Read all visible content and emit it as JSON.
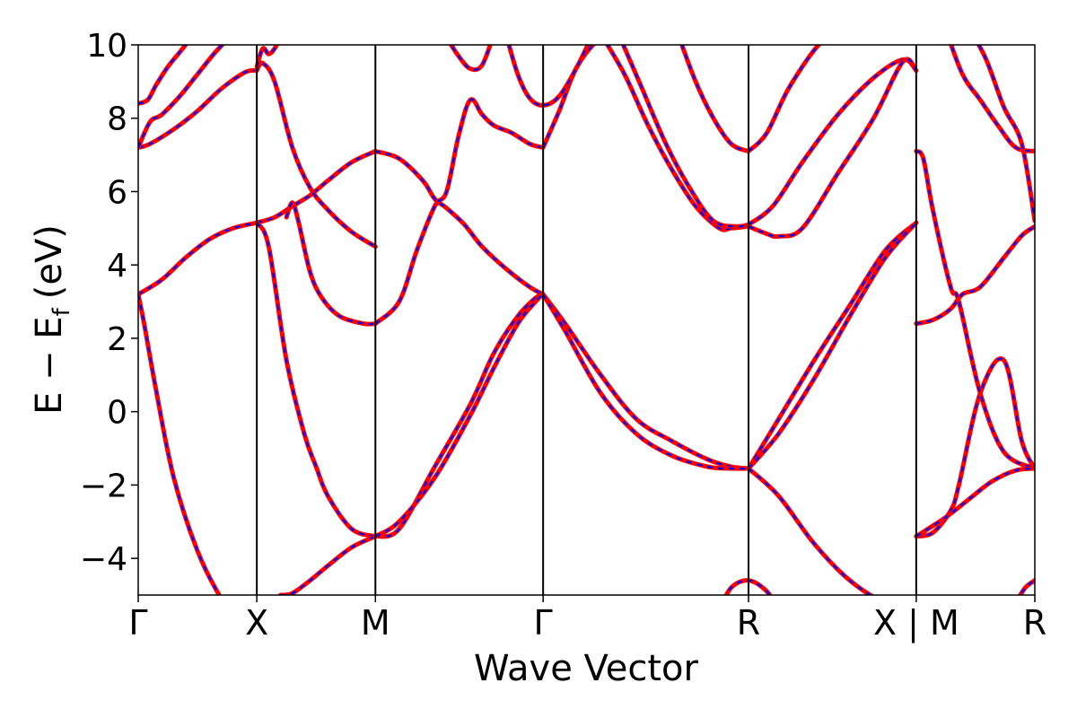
{
  "chart_data": {
    "type": "line",
    "title": "",
    "xlabel": "Wave Vector",
    "ylabel": "E − E",
    "ylabel_subscript": "f",
    "ylabel_unit": "(eV)",
    "ylim": [
      -5,
      10
    ],
    "yticks": [
      -4,
      -2,
      0,
      2,
      4,
      6,
      8,
      10
    ],
    "ytick_labels": [
      "−4",
      "−2",
      "0",
      "2",
      "4",
      "6",
      "8",
      "10"
    ],
    "kpath": [
      {
        "label": "Γ",
        "x": 0.0
      },
      {
        "label": "X",
        "x": 1.0
      },
      {
        "label": "M",
        "x": 2.0
      },
      {
        "label": "Γ",
        "x": 3.414
      },
      {
        "label": "R",
        "x": 5.146
      },
      {
        "label": "X | M",
        "x": 6.56
      },
      {
        "label": "R",
        "x": 7.56
      }
    ],
    "xlim": [
      0,
      7.56
    ],
    "grid": false,
    "colors": {
      "primary": "#ff0000",
      "dashed": "#0000ff",
      "vlines": "#000000"
    },
    "series": [
      {
        "segment": "Gamma-X",
        "x": [
          0,
          0.2,
          0.4,
          0.6,
          0.8,
          1.0
        ],
        "values": [
          3.2,
          3.6,
          4.2,
          4.7,
          5.0,
          5.15
        ]
      },
      {
        "segment": "Gamma-X",
        "x": [
          0,
          0.05,
          0.15,
          0.3,
          0.5,
          0.7,
          0.85,
          0.95
        ],
        "values": [
          3.2,
          2.4,
          0.6,
          -1.8,
          -3.8,
          -5.1,
          -5.8,
          -6.0
        ]
      },
      {
        "segment": "Gamma-X",
        "x": [
          0,
          0.1,
          0.3,
          0.5,
          0.7,
          0.9,
          1.0
        ],
        "values": [
          7.2,
          7.3,
          7.7,
          8.2,
          8.8,
          9.25,
          9.3
        ]
      },
      {
        "segment": "Gamma-X",
        "x": [
          0,
          0.1,
          0.2,
          0.35,
          0.5,
          0.65,
          0.8
        ],
        "values": [
          7.2,
          7.9,
          8.1,
          8.6,
          9.2,
          9.8,
          10.3
        ]
      },
      {
        "segment": "Gamma-X",
        "x": [
          0,
          0.08,
          0.15,
          0.25,
          0.35,
          0.45,
          0.55
        ],
        "values": [
          8.4,
          8.5,
          8.9,
          9.4,
          9.8,
          10.2,
          10.5
        ]
      },
      {
        "segment": "X-M",
        "x": [
          1.0,
          1.15,
          1.3,
          1.45,
          1.6,
          1.8,
          2.0
        ],
        "values": [
          5.15,
          5.3,
          5.6,
          5.9,
          6.3,
          6.8,
          7.1
        ]
      },
      {
        "segment": "X-M",
        "x": [
          1.0,
          1.05,
          1.15,
          1.3,
          1.45,
          1.6,
          1.8,
          2.0
        ],
        "values": [
          9.3,
          9.5,
          9.0,
          7.2,
          6.1,
          5.5,
          4.9,
          4.5
        ]
      },
      {
        "segment": "X-M",
        "x": [
          1.0,
          1.1,
          1.25,
          1.4,
          1.5,
          1.6,
          1.8,
          2.0
        ],
        "values": [
          5.15,
          4.5,
          1.4,
          -0.6,
          -1.5,
          -2.3,
          -3.2,
          -3.4
        ]
      },
      {
        "segment": "X-M",
        "x": [
          1.25,
          1.3,
          1.35,
          1.45,
          1.55,
          1.7,
          1.9,
          2.0
        ],
        "values": [
          5.3,
          5.7,
          5.2,
          3.8,
          3.1,
          2.6,
          2.4,
          2.4
        ]
      },
      {
        "segment": "X-M",
        "x": [
          1.2,
          1.3,
          1.45,
          1.6,
          1.8,
          2.0
        ],
        "values": [
          -5.0,
          -4.95,
          -4.6,
          -4.2,
          -3.7,
          -3.4
        ]
      },
      {
        "segment": "X-M",
        "x": [
          1.0,
          1.05,
          1.1,
          1.15,
          1.2
        ],
        "values": [
          9.4,
          9.9,
          9.75,
          9.9,
          10.2
        ]
      },
      {
        "segment": "M-Gamma",
        "x": [
          2.0,
          2.2,
          2.4,
          2.5,
          2.6,
          2.75,
          2.9,
          3.1,
          3.3,
          3.414
        ],
        "values": [
          7.1,
          6.9,
          6.3,
          5.8,
          5.55,
          5.1,
          4.5,
          3.9,
          3.4,
          3.2
        ]
      },
      {
        "segment": "M-Gamma",
        "x": [
          2.0,
          2.2,
          2.35,
          2.5,
          2.6,
          2.7,
          2.8,
          2.9,
          3.0,
          3.15,
          3.3,
          3.414
        ],
        "values": [
          2.4,
          3.0,
          4.4,
          5.6,
          6.0,
          7.5,
          8.5,
          8.1,
          7.8,
          7.6,
          7.3,
          7.2
        ]
      },
      {
        "segment": "M-Gamma",
        "x": [
          2.0,
          2.2,
          2.5,
          2.8,
          3.0,
          3.2,
          3.35,
          3.414
        ],
        "values": [
          -3.4,
          -3.2,
          -1.5,
          0.2,
          1.6,
          2.6,
          3.1,
          3.2
        ]
      },
      {
        "segment": "M-Gamma",
        "x": [
          2.0,
          2.2,
          2.5,
          2.8,
          3.0,
          3.2,
          3.35,
          3.414
        ],
        "values": [
          -3.4,
          -3.0,
          -1.8,
          -0.1,
          1.2,
          2.4,
          3.0,
          3.2
        ]
      },
      {
        "segment": "M-Gamma",
        "x": [
          2.6,
          2.7,
          2.8,
          2.9,
          3.0
        ],
        "values": [
          10.2,
          9.7,
          9.35,
          9.45,
          10.3
        ]
      },
      {
        "segment": "Gamma-R",
        "x": [
          3.414,
          3.6,
          3.9,
          4.2,
          4.5,
          4.8,
          5.0,
          5.146
        ],
        "values": [
          3.2,
          2.4,
          1.0,
          -0.2,
          -0.8,
          -1.3,
          -1.5,
          -1.55
        ]
      },
      {
        "segment": "Gamma-R",
        "x": [
          3.414,
          3.6,
          3.9,
          4.2,
          4.5,
          4.8,
          5.0,
          5.146
        ],
        "values": [
          3.2,
          2.2,
          0.5,
          -0.6,
          -1.2,
          -1.5,
          -1.55,
          -1.55
        ]
      },
      {
        "segment": "Gamma-R",
        "x": [
          3.414,
          3.55,
          3.7,
          3.9,
          4.1
        ],
        "values": [
          7.2,
          8.2,
          9.4,
          10.2,
          10.5
        ]
      },
      {
        "segment": "Gamma-R",
        "x": [
          3.1,
          3.2,
          3.3,
          3.414,
          3.55,
          3.7,
          3.85
        ],
        "values": [
          10.3,
          9.2,
          8.55,
          8.35,
          8.6,
          9.4,
          10.4
        ]
      },
      {
        "segment": "Gamma-R",
        "x": [
          3.9,
          4.1,
          4.3,
          4.5,
          4.7,
          4.9,
          5.0,
          5.146
        ],
        "values": [
          10.3,
          9.2,
          7.8,
          6.6,
          5.6,
          5.0,
          5.0,
          5.05
        ]
      },
      {
        "segment": "Gamma-R",
        "x": [
          4.05,
          4.25,
          4.45,
          4.65,
          4.85,
          5.05,
          5.146
        ],
        "values": [
          10.3,
          8.8,
          7.3,
          6.1,
          5.2,
          5.05,
          5.1
        ]
      },
      {
        "segment": "Gamma-R",
        "x": [
          4.55,
          4.7,
          4.85,
          5.0,
          5.146
        ],
        "values": [
          10.3,
          9.0,
          8.0,
          7.3,
          7.1
        ]
      },
      {
        "segment": "R-X",
        "x": [
          5.146,
          5.3,
          5.5,
          5.8,
          6.1,
          6.4,
          6.56
        ],
        "values": [
          7.1,
          7.6,
          8.9,
          10.2,
          10.5,
          10.6,
          10.6
        ]
      },
      {
        "segment": "R-X",
        "x": [
          5.146,
          5.35,
          5.6,
          5.9,
          6.2,
          6.45,
          6.56
        ],
        "values": [
          5.1,
          5.6,
          6.8,
          8.1,
          9.1,
          9.6,
          9.3
        ]
      },
      {
        "segment": "R-X",
        "x": [
          5.146,
          5.3,
          5.4,
          5.6,
          5.9,
          6.2,
          6.45,
          6.56
        ],
        "values": [
          5.05,
          4.85,
          4.78,
          5.0,
          6.5,
          8.0,
          9.55,
          9.3
        ]
      },
      {
        "segment": "R-X",
        "x": [
          5.146,
          5.4,
          5.7,
          6.0,
          6.3,
          6.56
        ],
        "values": [
          -1.55,
          -0.2,
          1.4,
          2.9,
          4.4,
          5.15
        ]
      },
      {
        "segment": "R-X",
        "x": [
          5.146,
          5.4,
          5.7,
          6.0,
          6.3,
          6.56
        ],
        "values": [
          -1.55,
          -0.6,
          0.9,
          2.6,
          4.2,
          5.15
        ]
      },
      {
        "segment": "R-X",
        "x": [
          5.146,
          5.4,
          5.7,
          6.0,
          6.3,
          6.56
        ],
        "values": [
          -1.55,
          -2.3,
          -3.6,
          -4.6,
          -5.2,
          -5.25
        ]
      },
      {
        "segment": "R-X",
        "x": [
          4.9,
          5.0,
          5.146,
          5.3,
          5.4
        ],
        "values": [
          -5.4,
          -4.8,
          -4.6,
          -4.9,
          -5.4
        ]
      },
      {
        "segment": "M-R",
        "x": [
          6.56,
          6.7,
          6.85,
          6.95,
          7.1,
          7.3,
          7.45,
          7.56
        ],
        "values": [
          2.4,
          2.5,
          2.8,
          3.2,
          3.4,
          4.2,
          4.8,
          5.05
        ]
      },
      {
        "segment": "M-R",
        "x": [
          6.56,
          6.7,
          6.85,
          6.92,
          7.1,
          7.3,
          7.45,
          7.56
        ],
        "values": [
          -3.4,
          -3.3,
          -2.7,
          -2.0,
          0.5,
          1.4,
          -0.8,
          -1.55
        ]
      },
      {
        "segment": "M-R",
        "x": [
          6.56,
          6.62,
          6.7,
          6.85,
          6.92,
          7.1,
          7.3,
          7.56
        ],
        "values": [
          7.1,
          6.9,
          5.5,
          3.4,
          3.0,
          0.5,
          -1.1,
          -1.55
        ]
      },
      {
        "segment": "M-R",
        "x": [
          6.56,
          6.8,
          7.0,
          7.2,
          7.4,
          7.56
        ],
        "values": [
          -3.4,
          -2.9,
          -2.4,
          -1.9,
          -1.6,
          -1.55
        ]
      },
      {
        "segment": "M-R",
        "x": [
          6.8,
          6.95,
          7.1,
          7.25,
          7.4,
          7.56
        ],
        "values": [
          10.5,
          9.2,
          8.5,
          7.8,
          7.2,
          7.1
        ]
      },
      {
        "segment": "M-R",
        "x": [
          7.0,
          7.15,
          7.3,
          7.45,
          7.56
        ],
        "values": [
          10.5,
          9.6,
          8.3,
          7.3,
          5.2
        ]
      },
      {
        "segment": "M-R",
        "x": [
          7.4,
          7.48,
          7.56
        ],
        "values": [
          -5.2,
          -4.8,
          -4.6
        ]
      }
    ]
  }
}
